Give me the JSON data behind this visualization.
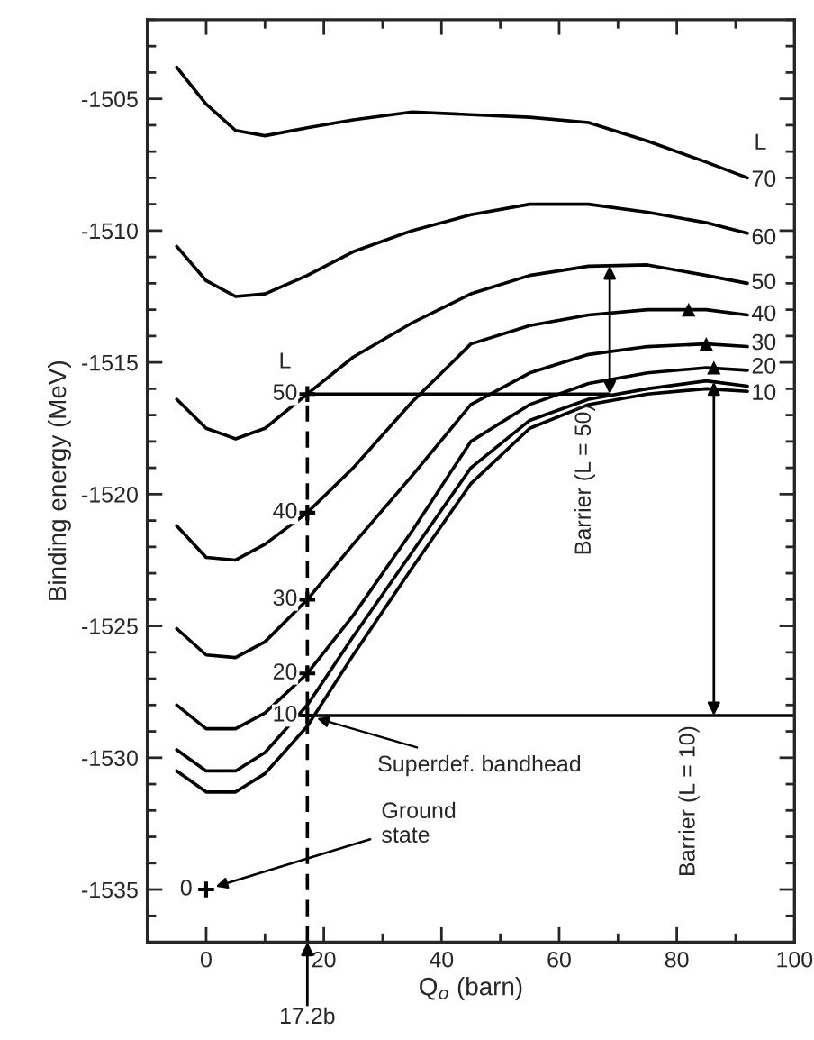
{
  "chart_data": {
    "type": "line",
    "xlabel": "Q$_{o}$ (barn)",
    "ylabel": "Binding energy (MeV)",
    "xlim": [
      -10,
      100
    ],
    "ylim": [
      -1537,
      -1502
    ],
    "xticks": [
      0,
      {
        "value": 10,
        "label": null
      },
      20,
      {
        "value": 30,
        "label": null
      },
      40,
      {
        "value": 50,
        "label": null
      },
      60,
      {
        "value": 70,
        "label": null
      },
      80,
      {
        "value": 90,
        "label": null
      },
      100
    ],
    "yticks": [
      {
        "value": -1537,
        "label": null
      },
      {
        "value": -1536,
        "label": null
      },
      -1535,
      {
        "value": -1534,
        "label": null
      },
      {
        "value": -1533,
        "label": null
      },
      {
        "value": -1532,
        "label": null
      },
      {
        "value": -1531,
        "label": null
      },
      -1530,
      {
        "value": -1529,
        "label": null
      },
      {
        "value": -1528,
        "label": null
      },
      {
        "value": -1527,
        "label": null
      },
      {
        "value": -1526,
        "label": null
      },
      -1525,
      {
        "value": -1524,
        "label": null
      },
      {
        "value": -1523,
        "label": null
      },
      {
        "value": -1522,
        "label": null
      },
      {
        "value": -1521,
        "label": null
      },
      -1520,
      {
        "value": -1519,
        "label": null
      },
      {
        "value": -1518,
        "label": null
      },
      {
        "value": -1517,
        "label": null
      },
      {
        "value": -1516,
        "label": null
      },
      -1515,
      {
        "value": -1514,
        "label": null
      },
      {
        "value": -1513,
        "label": null
      },
      {
        "value": -1512,
        "label": null
      },
      {
        "value": -1511,
        "label": null
      },
      -1510,
      {
        "value": -1509,
        "label": null
      },
      {
        "value": -1508,
        "label": null
      },
      {
        "value": -1507,
        "label": null
      },
      {
        "value": -1506,
        "label": null
      },
      -1505,
      {
        "value": -1504,
        "label": null
      },
      {
        "value": -1503,
        "label": null
      },
      {
        "value": -1502,
        "label": null
      }
    ],
    "grid": false,
    "legend": false,
    "marker": "none",
    "line_style": "solid",
    "x": [
      -5,
      0,
      5,
      10,
      17.2,
      25,
      35,
      45,
      55,
      65,
      75,
      85,
      92
    ],
    "series": [
      {
        "color": "#000000",
        "values": [
          -1503.8,
          -1505.2,
          -1506.2,
          -1506.4,
          -1506.1,
          -1505.8,
          -1505.5,
          -1505.6,
          -1505.7,
          -1505.9,
          -1506.6,
          -1507.4,
          -1508.0
        ]
      },
      {
        "color": "#000000",
        "values": [
          -1510.6,
          -1511.9,
          -1512.5,
          -1512.4,
          -1511.7,
          -1510.8,
          -1510.0,
          -1509.4,
          -1509.0,
          -1509.0,
          -1509.3,
          -1509.7,
          -1510.1
        ]
      },
      {
        "color": "#000000",
        "values": [
          -1516.4,
          -1517.5,
          -1517.9,
          -1517.5,
          -1516.2,
          -1514.8,
          -1513.5,
          -1512.4,
          -1511.7,
          -1511.35,
          -1511.3,
          -1511.7,
          -1512.0
        ]
      },
      {
        "color": "#000000",
        "values": [
          -1521.2,
          -1522.4,
          -1522.5,
          -1521.9,
          -1520.7,
          -1519.0,
          -1516.5,
          -1514.3,
          -1513.6,
          -1513.2,
          -1513.0,
          -1513.0,
          -1513.2
        ]
      },
      {
        "color": "#000000",
        "values": [
          -1525.1,
          -1526.1,
          -1526.2,
          -1525.6,
          -1524.0,
          -1521.9,
          -1519.3,
          -1516.6,
          -1515.4,
          -1514.7,
          -1514.4,
          -1514.3,
          -1514.4
        ]
      },
      {
        "color": "#000000",
        "values": [
          -1528.0,
          -1528.9,
          -1528.9,
          -1528.3,
          -1526.8,
          -1524.6,
          -1521.4,
          -1518.0,
          -1516.6,
          -1515.8,
          -1515.4,
          -1515.2,
          -1515.3
        ]
      },
      {
        "color": "#000000",
        "values": [
          -1529.7,
          -1530.5,
          -1530.5,
          -1529.8,
          -1528.0,
          -1525.4,
          -1522.2,
          -1519.0,
          -1517.2,
          -1516.4,
          -1516.0,
          -1515.7,
          -1515.9
        ]
      },
      {
        "color": "#000000",
        "values": [
          -1530.5,
          -1531.3,
          -1531.3,
          -1530.6,
          -1528.8,
          -1526.1,
          -1522.8,
          -1519.6,
          -1517.5,
          -1516.6,
          -1516.2,
          -1516.0,
          -1516.1
        ]
      },
      {
        "color": "#000000",
        "x": [
          17.2,
          68.6
        ],
        "values": [
          -1516.2,
          -1516.2
        ]
      },
      {
        "color": "#000000",
        "x": [
          17.2,
          100
        ],
        "values": [
          -1528.4,
          -1528.4
        ]
      },
      {
        "color": "#000000",
        "x": [
          17.2,
          17.2
        ],
        "values": [
          -1537,
          -1516.2
        ],
        "line_style": "dashed"
      },
      {
        "color": "#000000",
        "type": "scatter",
        "marker": "triangle",
        "x": [
          82,
          85,
          86.3
        ],
        "values": [
          -1513.0,
          -1514.3,
          -1515.2
        ]
      },
      {
        "color": "#000000",
        "type": "scatter",
        "marker": "cross",
        "x": [
          17.2,
          17.2,
          17.2,
          17.2,
          17.2,
          0
        ],
        "values": [
          -1516.2,
          -1520.7,
          -1524.0,
          -1526.8,
          -1528.4,
          -1535
        ]
      }
    ],
    "annotations": [
      {
        "text": "L",
        "x": 94.2,
        "y": -1506.7
      },
      {
        "text": "70",
        "x": 94.8,
        "y": -1508.1
      },
      {
        "text": "60",
        "x": 94.8,
        "y": -1510.3
      },
      {
        "text": "50",
        "x": 94.8,
        "y": -1512.0
      },
      {
        "text": "40",
        "x": 94.8,
        "y": -1513.2
      },
      {
        "text": "30",
        "x": 94.8,
        "y": -1514.3
      },
      {
        "text": "20",
        "x": 94.8,
        "y": -1515.2
      },
      {
        "text": "10",
        "x": 94.8,
        "y": -1516.2
      },
      {
        "text": "L",
        "x": 13.4,
        "y": -1515.0
      },
      {
        "text": "50",
        "x": 13.4,
        "y": -1516.2
      },
      {
        "text": "40",
        "x": 13.4,
        "y": -1520.7
      },
      {
        "text": "30",
        "x": 13.4,
        "y": -1524.0
      },
      {
        "text": "20",
        "x": 13.4,
        "y": -1526.8
      },
      {
        "text": "10",
        "x": 13.4,
        "y": -1528.4
      },
      {
        "text": "0",
        "x": -3.4,
        "y": -1535
      },
      {
        "text": "Barrier (L = 50)",
        "x": 68.6,
        "y": -1511.33
      },
      {
        "text": "Barrier (L = 10)",
        "x": 86.3,
        "y": -1515.74
      },
      {
        "text": "Superdef. bandhead",
        "x": 17.2,
        "y": -1528.4
      },
      {
        "text": "Ground\nstate",
        "x": 0,
        "y": -1535
      },
      "17.2b"
    ]
  }
}
